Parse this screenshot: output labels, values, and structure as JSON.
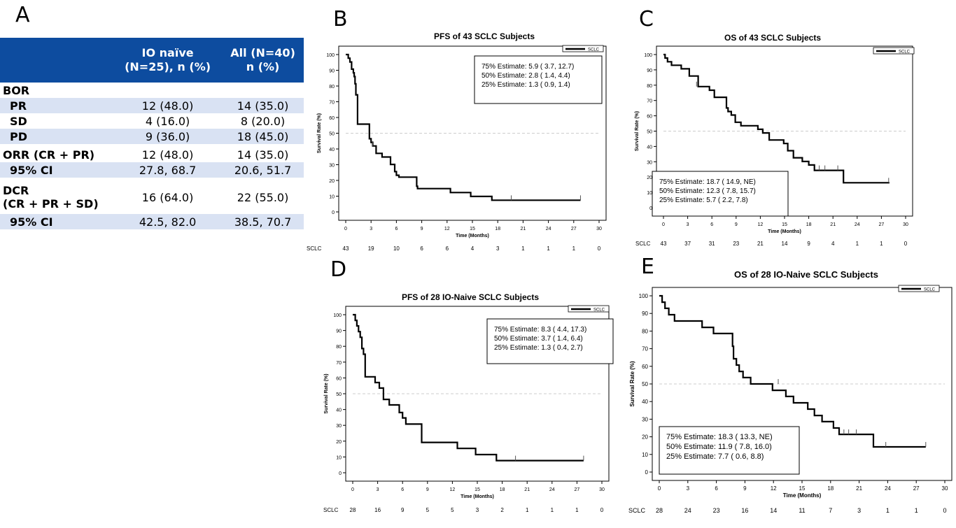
{
  "panels": {
    "A": "A",
    "B": "B",
    "C": "C",
    "D": "D",
    "E": "E"
  },
  "table": {
    "headers": [
      [
        "",
        ""
      ],
      [
        "IO naïve",
        "(N=25), n (%)"
      ],
      [
        "All (N=40)",
        "n (%)"
      ]
    ],
    "rows": [
      {
        "label": [
          "BOR"
        ],
        "io": "",
        "all": "",
        "shade": false
      },
      {
        "label": [
          "PR"
        ],
        "io": "12 (48.0)",
        "all": "14 (35.0)",
        "shade": true,
        "indent": true
      },
      {
        "label": [
          "SD"
        ],
        "io": "4 (16.0)",
        "all": "8 (20.0)",
        "shade": false,
        "indent": true
      },
      {
        "label": [
          "PD"
        ],
        "io": "9 (36.0)",
        "all": "18 (45.0)",
        "shade": true,
        "indent": true
      },
      {
        "label": [
          "ORR (CR + PR)"
        ],
        "io": "12 (48.0)",
        "all": "14 (35.0)",
        "shade": false
      },
      {
        "label": [
          "95% CI"
        ],
        "io": "27.8, 68.7",
        "all": "20.6, 51.7",
        "shade": true,
        "indent": true
      },
      {
        "label": [
          "DCR",
          "(CR + PR + SD)"
        ],
        "io": "16 (64.0)",
        "all": "22 (55.0)",
        "shade": false
      },
      {
        "label": [
          "95% CI"
        ],
        "io": "42.5, 82.0",
        "all": "38.5, 70.7",
        "shade": true,
        "indent": true
      }
    ]
  },
  "chart_data": [
    {
      "id": "B",
      "type": "line",
      "title": "PFS of 43 SCLC Subjects",
      "xlabel": "Time (Months)",
      "ylabel": "Survival Rate (%)",
      "xlim": [
        0,
        30
      ],
      "ylim": [
        0,
        100
      ],
      "xticks": [
        0,
        3,
        6,
        9,
        12,
        15,
        18,
        21,
        24,
        27,
        30
      ],
      "yticks": [
        0,
        10,
        20,
        30,
        40,
        50,
        60,
        70,
        80,
        90,
        100
      ],
      "legend": "SCLC",
      "legend_position": "top-right",
      "reference_line": 50,
      "estimates": [
        "75% Estimate:  5.9 (  3.7,  12.7)",
        "50% Estimate:  2.8 (  1.4,   4.4)",
        "25% Estimate:  1.3 (  0.9,   1.4)"
      ],
      "risk_label": "SCLC",
      "at_risk": [
        "43",
        "19",
        "10",
        "6",
        "6",
        "4",
        "3",
        "1",
        "1",
        "1",
        "0"
      ],
      "series": [
        {
          "name": "SCLC",
          "x": [
            0,
            0.3,
            0.3,
            0.5,
            0.5,
            0.7,
            0.7,
            0.9,
            0.9,
            1.0,
            1.0,
            1.1,
            1.1,
            1.2,
            1.2,
            1.4,
            1.4,
            2.8,
            2.8,
            3.0,
            3.0,
            3.2,
            3.2,
            3.6,
            3.6,
            4.3,
            4.3,
            5.3,
            5.3,
            5.8,
            5.8,
            6.0,
            6.0,
            6.3,
            6.3,
            8.4,
            8.4,
            8.5,
            8.5,
            12.4,
            12.4,
            14.8,
            14.8,
            17.3,
            17.3,
            27.8
          ],
          "y": [
            100,
            100,
            97.7,
            97.7,
            95.3,
            95.3,
            90.7,
            90.7,
            88.4,
            88.4,
            86,
            86,
            81.4,
            81.4,
            74.4,
            74.4,
            55.8,
            55.8,
            46.5,
            46.5,
            44.2,
            44.2,
            41.9,
            41.9,
            37.2,
            37.2,
            34.9,
            34.9,
            30.2,
            30.2,
            25.6,
            25.6,
            23.3,
            23.3,
            22.1,
            22.1,
            16.3,
            16.3,
            14.8,
            14.8,
            12.3,
            12.3,
            9.8,
            9.8,
            7.4,
            7.4
          ]
        }
      ],
      "censors": [
        [
          3.2,
          41.9
        ],
        [
          19.6,
          7.4
        ],
        [
          27.8,
          7.4
        ]
      ]
    },
    {
      "id": "C",
      "type": "line",
      "title": "OS of 43 SCLC Subjects",
      "xlabel": "Time (Months)",
      "ylabel": "Survival Rate (%)",
      "xlim": [
        0,
        30
      ],
      "ylim": [
        0,
        100
      ],
      "xticks": [
        0,
        3,
        6,
        9,
        12,
        15,
        18,
        21,
        24,
        27,
        30
      ],
      "yticks": [
        0,
        10,
        20,
        30,
        40,
        50,
        60,
        70,
        80,
        90,
        100
      ],
      "legend": "SCLC",
      "legend_position": "top-right",
      "reference_line": 50,
      "estimates": [
        "75% Estimate: 18.7 ( 14.9,  NE)",
        "50% Estimate: 12.3 (  7.8,  15.7)",
        "25% Estimate:  5.7 (  2.2,   7.8)"
      ],
      "risk_label": "SCLC",
      "at_risk": [
        "43",
        "37",
        "31",
        "23",
        "21",
        "14",
        "9",
        "4",
        "1",
        "1",
        "0"
      ],
      "series": [
        {
          "name": "SCLC",
          "x": [
            0,
            0.2,
            0.2,
            0.5,
            0.5,
            1.0,
            1.0,
            2.2,
            2.2,
            3.2,
            3.2,
            4.3,
            4.3,
            5.7,
            5.7,
            6.3,
            6.3,
            7.8,
            7.8,
            8.0,
            8.0,
            8.4,
            8.4,
            8.9,
            8.9,
            9.6,
            9.6,
            11.7,
            11.7,
            12.3,
            12.3,
            13.1,
            13.1,
            14.9,
            14.9,
            15.4,
            15.4,
            16.1,
            16.1,
            17.2,
            17.2,
            18.0,
            18.0,
            18.7,
            18.7,
            22.3,
            22.3,
            28.0
          ],
          "y": [
            100,
            100,
            97.7,
            97.7,
            95.3,
            95.3,
            93,
            93,
            90.7,
            90.7,
            86,
            86,
            79.1,
            79.1,
            76.7,
            76.7,
            72.1,
            72.1,
            65.1,
            65.1,
            62.8,
            62.8,
            60.5,
            60.5,
            55.8,
            55.8,
            53.5,
            53.5,
            51.2,
            51.2,
            48.8,
            48.8,
            44.2,
            44.2,
            41.9,
            41.9,
            37.2,
            37.2,
            32.6,
            32.6,
            30.2,
            30.2,
            27.9,
            27.9,
            24.4,
            24.4,
            16.3,
            16.3
          ]
        }
      ],
      "censors": [
        [
          4.1,
          79.1
        ],
        [
          19.3,
          24.4
        ],
        [
          20.0,
          24.4
        ],
        [
          21.6,
          24.4
        ],
        [
          27.9,
          16.3
        ]
      ]
    },
    {
      "id": "D",
      "type": "line",
      "title": "PFS of 28 IO-Naive SCLC Subjects",
      "xlabel": "Time (Months)",
      "ylabel": "Survival Rate (%)",
      "xlim": [
        0,
        30
      ],
      "ylim": [
        0,
        100
      ],
      "xticks": [
        0,
        3,
        6,
        9,
        12,
        15,
        18,
        21,
        24,
        27,
        30
      ],
      "yticks": [
        0,
        10,
        20,
        30,
        40,
        50,
        60,
        70,
        80,
        90,
        100
      ],
      "legend": "SCLC",
      "legend_position": "top-right",
      "reference_line": 50,
      "estimates": [
        "75% Estimate:  8.3 (  4.4,  17.3)",
        "50% Estimate:  3.7 (  1.4,   6.4)",
        "25% Estimate:  1.3 (  0.4,   2.7)"
      ],
      "risk_label": "SCLC",
      "at_risk": [
        "28",
        "16",
        "9",
        "5",
        "5",
        "3",
        "2",
        "1",
        "1",
        "1",
        "0"
      ],
      "series": [
        {
          "name": "SCLC",
          "x": [
            0,
            0.3,
            0.3,
            0.5,
            0.5,
            0.7,
            0.7,
            0.9,
            0.9,
            1.1,
            1.1,
            1.3,
            1.3,
            1.5,
            1.5,
            2.7,
            2.7,
            3.2,
            3.2,
            3.7,
            3.7,
            4.4,
            4.4,
            5.6,
            5.6,
            6.0,
            6.0,
            6.4,
            6.4,
            8.3,
            8.3,
            12.6,
            12.6,
            14.8,
            14.8,
            17.3,
            17.3,
            27.8
          ],
          "y": [
            100,
            100,
            96.4,
            96.4,
            92.9,
            92.9,
            89.3,
            89.3,
            85.7,
            85.7,
            78.6,
            78.6,
            75,
            75,
            60.7,
            60.7,
            57.1,
            57.1,
            53.6,
            53.6,
            46.4,
            46.4,
            42.9,
            42.9,
            38.1,
            38.1,
            34.7,
            34.7,
            30.8,
            30.8,
            19.2,
            19.2,
            15.4,
            15.4,
            11.5,
            11.5,
            7.7,
            7.7
          ]
        }
      ],
      "censors": [
        [
          19.6,
          7.7
        ],
        [
          27.8,
          7.7
        ]
      ]
    },
    {
      "id": "E",
      "type": "line",
      "title": "OS of 28 IO-Naive SCLC Subjects",
      "xlabel": "Time (Months)",
      "ylabel": "Survival Rate (%)",
      "xlim": [
        0,
        30
      ],
      "ylim": [
        0,
        100
      ],
      "xticks": [
        0,
        3,
        6,
        9,
        12,
        15,
        18,
        21,
        24,
        27,
        30
      ],
      "yticks": [
        0,
        10,
        20,
        30,
        40,
        50,
        60,
        70,
        80,
        90,
        100
      ],
      "legend": "SCLC",
      "legend_position": "top-right",
      "reference_line": 50,
      "estimates": [
        "75% Estimate: 18.3 ( 13.3,  NE)",
        "50% Estimate: 11.9 (  7.8,  16.0)",
        "25% Estimate:  7.7 (  0.6,   8.8)"
      ],
      "risk_label": "SCLC",
      "at_risk": [
        "28",
        "24",
        "23",
        "16",
        "14",
        "11",
        "7",
        "3",
        "1",
        "1",
        "0"
      ],
      "series": [
        {
          "name": "SCLC",
          "x": [
            0,
            0.3,
            0.3,
            0.6,
            0.6,
            1.0,
            1.0,
            1.6,
            1.6,
            2.9,
            2.9,
            4.5,
            4.5,
            5.7,
            5.7,
            6.4,
            6.4,
            7.7,
            7.7,
            7.8,
            7.8,
            8.1,
            8.1,
            8.4,
            8.4,
            8.8,
            8.8,
            9.6,
            9.6,
            11.9,
            11.9,
            13.3,
            13.3,
            14.1,
            14.1,
            15.6,
            15.6,
            16.3,
            16.3,
            17.1,
            17.1,
            18.3,
            18.3,
            18.9,
            18.9,
            22.5,
            22.5,
            28.0
          ],
          "y": [
            100,
            100,
            96.4,
            96.4,
            92.9,
            92.9,
            89.3,
            89.3,
            85.7,
            85.7,
            85.7,
            85.7,
            82.1,
            82.1,
            78.6,
            78.6,
            78.6,
            78.6,
            71.4,
            71.4,
            64.3,
            64.3,
            60.7,
            60.7,
            57.1,
            57.1,
            53.6,
            53.6,
            50,
            50,
            46.4,
            46.4,
            42.9,
            42.9,
            39.3,
            39.3,
            35.7,
            35.7,
            32.1,
            32.1,
            28.6,
            28.6,
            25,
            25,
            21.4,
            21.4,
            14.3,
            14.3
          ]
        }
      ],
      "censors": [
        [
          12.5,
          50
        ],
        [
          19.4,
          21.4
        ],
        [
          19.9,
          21.4
        ],
        [
          20.7,
          21.4
        ],
        [
          23.8,
          14.3
        ],
        [
          28.0,
          14.3
        ]
      ]
    }
  ]
}
